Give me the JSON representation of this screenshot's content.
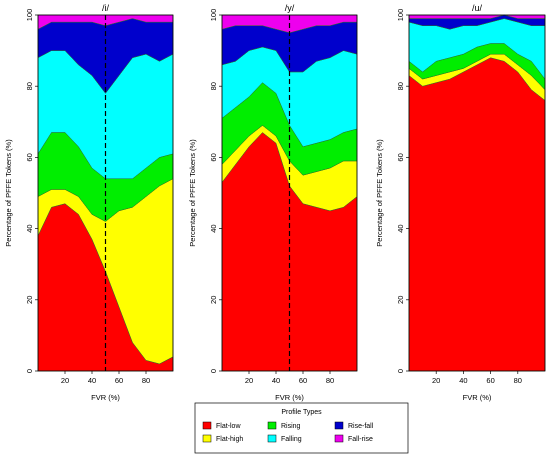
{
  "legend": {
    "title": "Profile Types",
    "entries": [
      {
        "key": "flat_low",
        "label": "Flat-low",
        "color": "#ff0000"
      },
      {
        "key": "flat_high",
        "label": "Flat-high",
        "color": "#ffff00"
      },
      {
        "key": "rising",
        "label": "Rising",
        "color": "#00ee00"
      },
      {
        "key": "falling",
        "label": "Falling",
        "color": "#00ffff"
      },
      {
        "key": "rise_fall",
        "label": "Rise-fall",
        "color": "#0000cc"
      },
      {
        "key": "fall_rise",
        "label": "Fall-rise",
        "color": "#ee00ee"
      }
    ]
  },
  "chart_data": [
    {
      "type": "area",
      "title": "/i/",
      "xlabel": "FVR (%)",
      "ylabel": "Percentage of PFFE Tokens (%)",
      "xlim": [
        0,
        100
      ],
      "ylim": [
        0,
        100
      ],
      "xticks": [
        "20",
        "40",
        "60",
        "80"
      ],
      "yticks": [
        "0",
        "20",
        "40",
        "60",
        "80",
        "100"
      ],
      "stacked": true,
      "vline_x": 50,
      "x": [
        0,
        10,
        20,
        30,
        40,
        50,
        60,
        70,
        80,
        90,
        100
      ],
      "series": [
        {
          "name": "Flat-low",
          "values": [
            38,
            46,
            47,
            44,
            37,
            28,
            18,
            8,
            3,
            2,
            4
          ]
        },
        {
          "name": "Flat-high",
          "values": [
            11,
            5,
            4,
            5,
            7,
            14,
            27,
            38,
            46,
            50,
            50
          ]
        },
        {
          "name": "Rising",
          "values": [
            12,
            16,
            16,
            14,
            13,
            12,
            9,
            8,
            8,
            8,
            7
          ]
        },
        {
          "name": "Falling",
          "values": [
            27,
            23,
            23,
            23,
            26,
            24,
            29,
            34,
            32,
            27,
            28
          ]
        },
        {
          "name": "Rise-fall",
          "values": [
            8,
            8,
            8,
            12,
            15,
            19,
            15,
            11,
            9,
            11,
            9
          ]
        },
        {
          "name": "Fall-rise",
          "values": [
            4,
            2,
            2,
            2,
            2,
            3,
            2,
            1,
            2,
            2,
            2
          ]
        }
      ]
    },
    {
      "type": "area",
      "title": "/y/",
      "xlabel": "FVR (%)",
      "ylabel": "Percentage of PFFE Tokens (%)",
      "xlim": [
        0,
        100
      ],
      "ylim": [
        0,
        100
      ],
      "xticks": [
        "20",
        "40",
        "60",
        "80"
      ],
      "yticks": [
        "0",
        "20",
        "40",
        "60",
        "80",
        "100"
      ],
      "stacked": true,
      "vline_x": 50,
      "x": [
        0,
        10,
        20,
        30,
        40,
        50,
        60,
        70,
        80,
        90,
        100
      ],
      "series": [
        {
          "name": "Flat-low",
          "values": [
            53,
            58,
            63,
            67,
            64,
            52,
            47,
            46,
            45,
            46,
            49
          ]
        },
        {
          "name": "Flat-high",
          "values": [
            5,
            4,
            3,
            2,
            2,
            7,
            8,
            10,
            12,
            13,
            10
          ]
        },
        {
          "name": "Rising",
          "values": [
            13,
            12,
            11,
            12,
            12,
            10,
            8,
            8,
            8,
            8,
            9
          ]
        },
        {
          "name": "Falling",
          "values": [
            15,
            13,
            13,
            10,
            12,
            15,
            21,
            23,
            23,
            23,
            21
          ]
        },
        {
          "name": "Rise-fall",
          "values": [
            10,
            10,
            7,
            6,
            6,
            11,
            12,
            10,
            9,
            8,
            9
          ]
        },
        {
          "name": "Fall-rise",
          "values": [
            4,
            3,
            3,
            3,
            4,
            5,
            4,
            3,
            3,
            2,
            2
          ]
        }
      ]
    },
    {
      "type": "area",
      "title": "/u/",
      "xlabel": "FVR (%)",
      "ylabel": "Percentage of PFFE Tokens (%)",
      "xlim": [
        0,
        100
      ],
      "ylim": [
        0,
        100
      ],
      "xticks": [
        "20",
        "40",
        "60",
        "80"
      ],
      "yticks": [
        "0",
        "20",
        "40",
        "60",
        "80",
        "100"
      ],
      "stacked": true,
      "x": [
        0,
        10,
        20,
        30,
        40,
        50,
        60,
        70,
        80,
        90,
        100
      ],
      "series": [
        {
          "name": "Flat-low",
          "values": [
            83,
            80,
            81,
            82,
            84,
            86,
            88,
            87,
            84,
            79,
            76
          ]
        },
        {
          "name": "Flat-high",
          "values": [
            2,
            2,
            2,
            2,
            1,
            1,
            1,
            2,
            2,
            4,
            3
          ]
        },
        {
          "name": "Rising",
          "values": [
            2,
            2,
            4,
            4,
            4,
            4,
            3,
            3,
            3,
            4,
            3
          ]
        },
        {
          "name": "Falling",
          "values": [
            11,
            13,
            10,
            8,
            8,
            6,
            6,
            7,
            9,
            10,
            15
          ]
        },
        {
          "name": "Rise-fall",
          "values": [
            1,
            2,
            2,
            3,
            2,
            2,
            1,
            1,
            1,
            2,
            2
          ]
        },
        {
          "name": "Fall-rise",
          "values": [
            1,
            1,
            1,
            1,
            1,
            1,
            1,
            0,
            1,
            1,
            1
          ]
        }
      ]
    }
  ]
}
